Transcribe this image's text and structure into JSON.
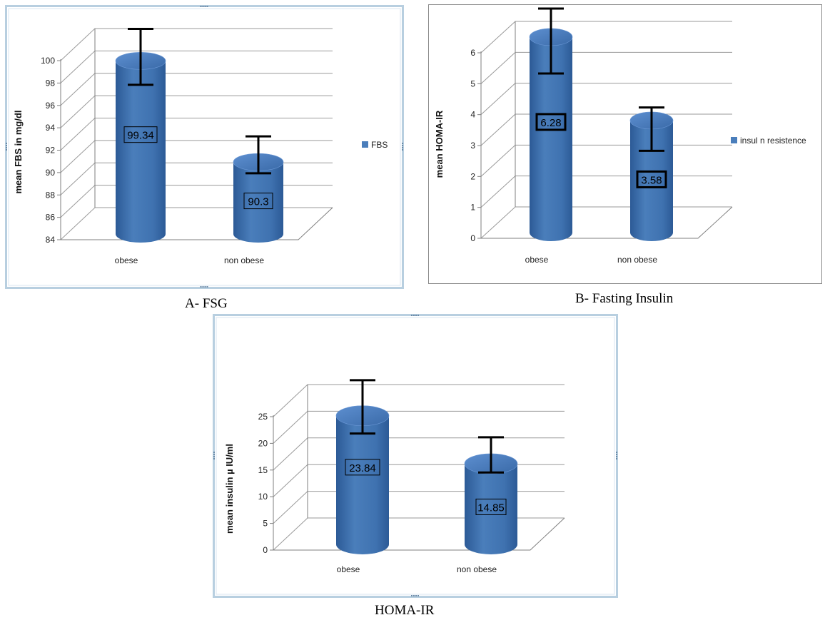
{
  "captions": [
    "A-   FSG",
    "B-   Fasting Insulin",
    "HOMA-IR"
  ],
  "colors": {
    "bar": "#4a7ebb",
    "bar_dark": "#2c5a96",
    "bar_light": "#8fb4e3",
    "grid": "#9a9a9a",
    "axis": "#7f7f7f",
    "frame": "#b8cfe0"
  },
  "chart_data": [
    {
      "type": "bar",
      "categories": [
        "obese",
        "non obese"
      ],
      "series": [
        {
          "name": "FBS",
          "values": [
            99.34,
            90.3
          ],
          "error_high": [
            102.2,
            92.6
          ],
          "error_low": [
            97.2,
            89.3
          ]
        }
      ],
      "data_labels": [
        "99.34",
        "90.3"
      ],
      "ylabel": "mean FBS in mg/dl",
      "ylim": [
        84,
        100
      ],
      "yticks": [
        84,
        86,
        88,
        90,
        92,
        94,
        96,
        98,
        100
      ],
      "legend": "right",
      "grid": true
    },
    {
      "type": "bar",
      "categories": [
        "obese",
        "non obese"
      ],
      "series": [
        {
          "name": "insul n resistence",
          "values": [
            6.28,
            3.58
          ],
          "error_high": [
            7.2,
            4.0
          ],
          "error_low": [
            5.1,
            2.6
          ]
        }
      ],
      "data_labels": [
        "6.28",
        "3.58"
      ],
      "ylabel": "mean HOMA-IR",
      "ylim": [
        0,
        6
      ],
      "yticks": [
        0,
        1,
        2,
        3,
        4,
        5,
        6
      ],
      "legend": "right",
      "grid": true
    },
    {
      "type": "bar",
      "categories": [
        "obese",
        "non obese"
      ],
      "series": [
        {
          "values": [
            23.84,
            14.85
          ],
          "error_high": [
            30.5,
            19.8
          ],
          "error_low": [
            20.5,
            13.2
          ]
        }
      ],
      "data_labels": [
        "23.84",
        "14.85"
      ],
      "ylabel": "mean insulin µ IU/ml",
      "ylim": [
        0,
        25
      ],
      "yticks": [
        0,
        5,
        10,
        15,
        20,
        25
      ],
      "legend": "none",
      "grid": true
    }
  ]
}
